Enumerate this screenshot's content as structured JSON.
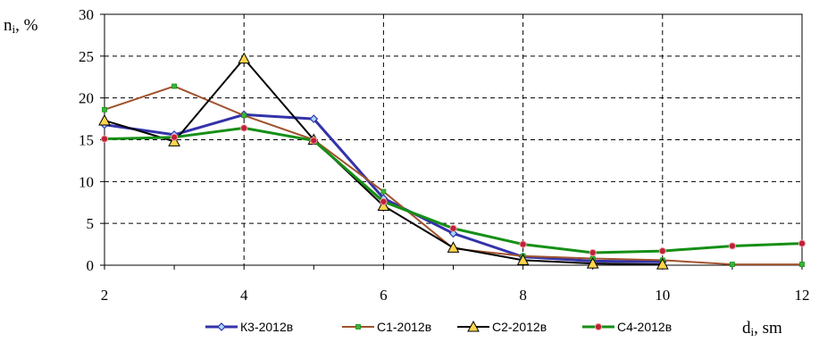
{
  "chart_data": {
    "type": "line",
    "title": "",
    "xlabel": "d",
    "xlabel_sub": "i",
    "xlabel_unit": ", sm",
    "ylabel": "n",
    "ylabel_sub": "i",
    "ylabel_unit": ", %",
    "xlim": [
      2,
      12
    ],
    "ylim": [
      0,
      30
    ],
    "x_ticks": [
      2,
      4,
      6,
      8,
      10,
      12
    ],
    "y_ticks": [
      0,
      5,
      10,
      15,
      20,
      25,
      30
    ],
    "grid": true,
    "legend_position": "bottom",
    "series": [
      {
        "name": "К3-2012в",
        "color": "#3333aa",
        "marker": "diamond",
        "x": [
          2,
          3,
          4,
          5,
          6,
          7,
          8,
          9,
          10
        ],
        "y": [
          16.8,
          15.6,
          18.0,
          17.5,
          8.0,
          3.8,
          1.0,
          0.5,
          0.4
        ]
      },
      {
        "name": "С1-2012в",
        "color": "#a0522d",
        "marker": "square",
        "x": [
          2,
          3,
          4,
          5,
          6,
          7,
          8,
          9,
          10,
          11,
          12
        ],
        "y": [
          18.6,
          21.4,
          17.9,
          15.0,
          8.8,
          2.0,
          1.1,
          0.8,
          0.6,
          0.1,
          0.1
        ]
      },
      {
        "name": "С2-2012в",
        "color": "#000000",
        "marker": "triangle",
        "x": [
          2,
          3,
          4,
          5,
          6,
          7,
          8,
          9,
          10
        ],
        "y": [
          17.3,
          14.8,
          24.7,
          15.0,
          7.1,
          2.1,
          0.6,
          0.2,
          0.1
        ]
      },
      {
        "name": "С4-2012в",
        "color": "#158f15",
        "marker": "circle",
        "x": [
          2,
          3,
          4,
          5,
          6,
          7,
          8,
          9,
          10,
          11,
          12
        ],
        "y": [
          15.1,
          15.3,
          16.4,
          14.9,
          7.6,
          4.4,
          2.5,
          1.5,
          1.7,
          2.3,
          2.6
        ]
      }
    ]
  }
}
